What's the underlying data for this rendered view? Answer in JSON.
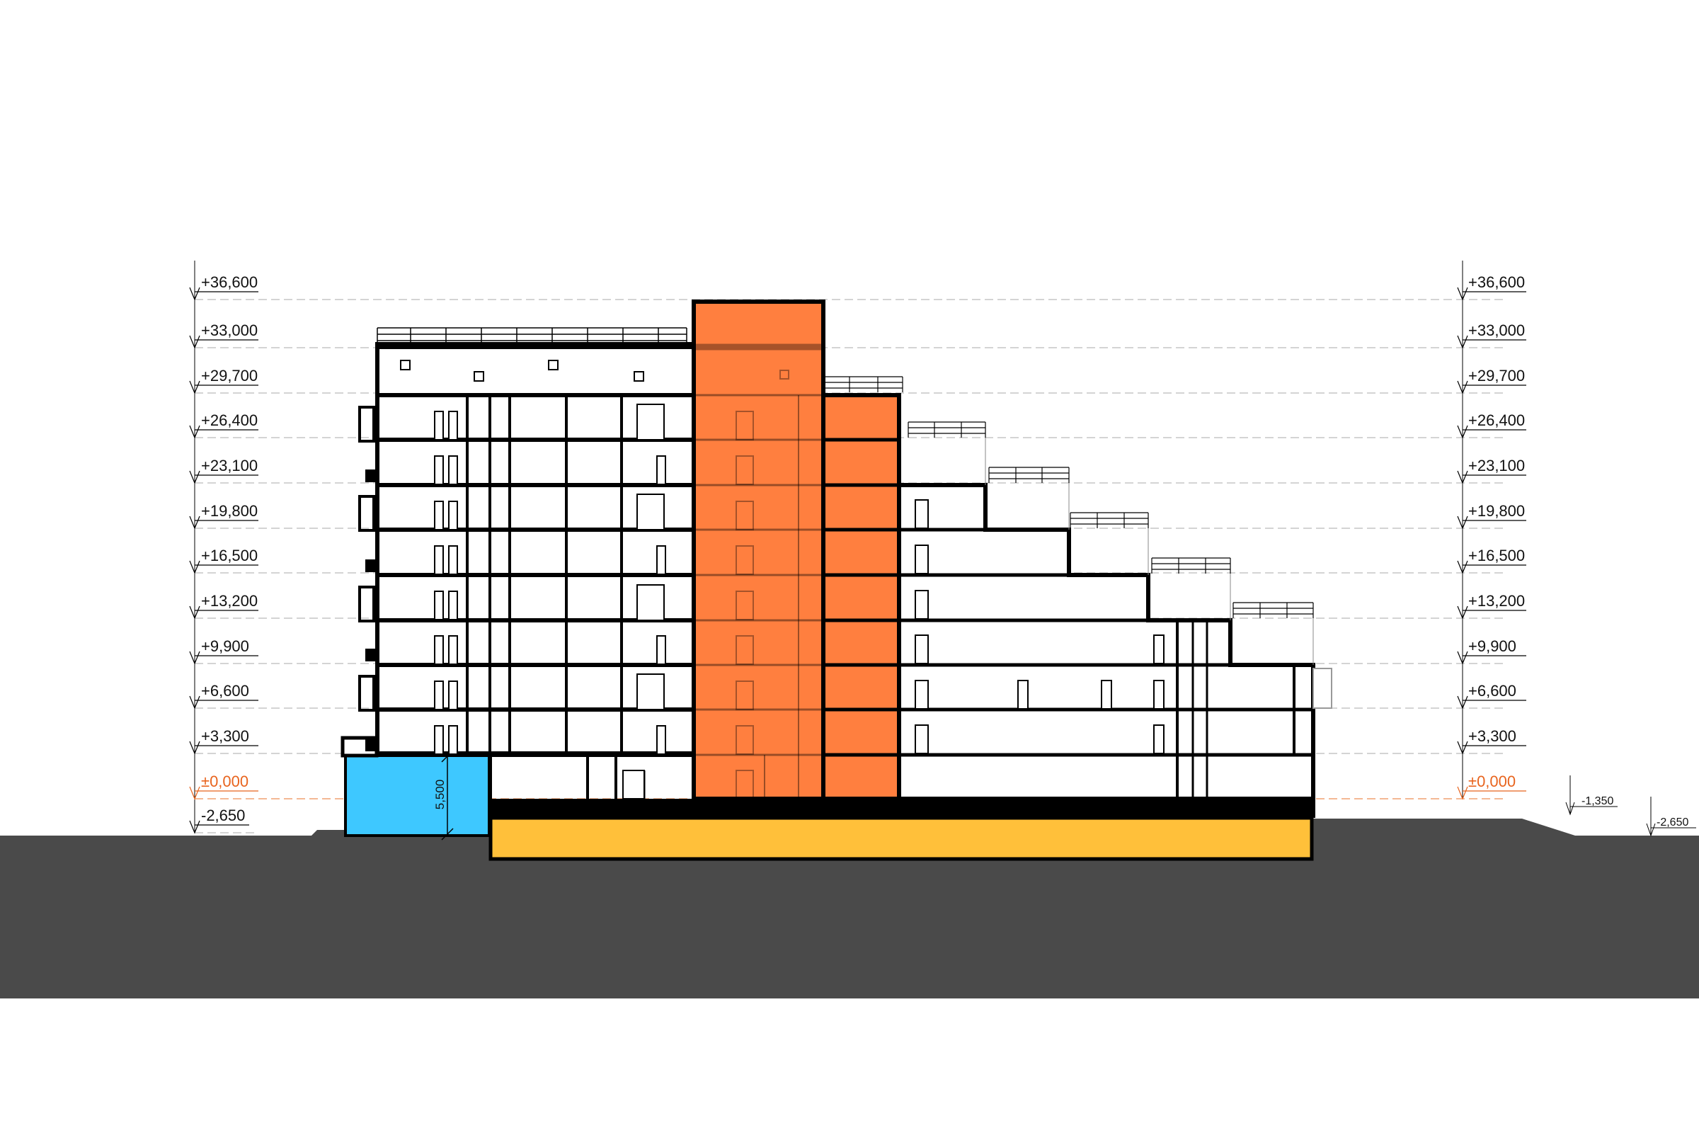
{
  "levels": {
    "l36600": "+36,600",
    "l33000": "+33,000",
    "l29700": "+29,700",
    "l26400": "+26,400",
    "l23100": "+23,100",
    "l19800": "+19,800",
    "l16500": "+16,500",
    "l13200": "+13,200",
    "l9900": "+9,900",
    "l6600": "+6,600",
    "l3300": "+3,300",
    "l0": "±0,000",
    "lm2650": "-2,650"
  },
  "site_levels": {
    "lm1350": "-1,350",
    "lm2650": "-2,650"
  },
  "dimensions": {
    "pool_depth": "5,500"
  },
  "colors": {
    "core": "#ff7f3f",
    "pool": "#3ec8ff",
    "parking": "#ffc03a",
    "ground": "#4a4a4a",
    "structure": "#000000",
    "zero_level": "#e8641e"
  }
}
